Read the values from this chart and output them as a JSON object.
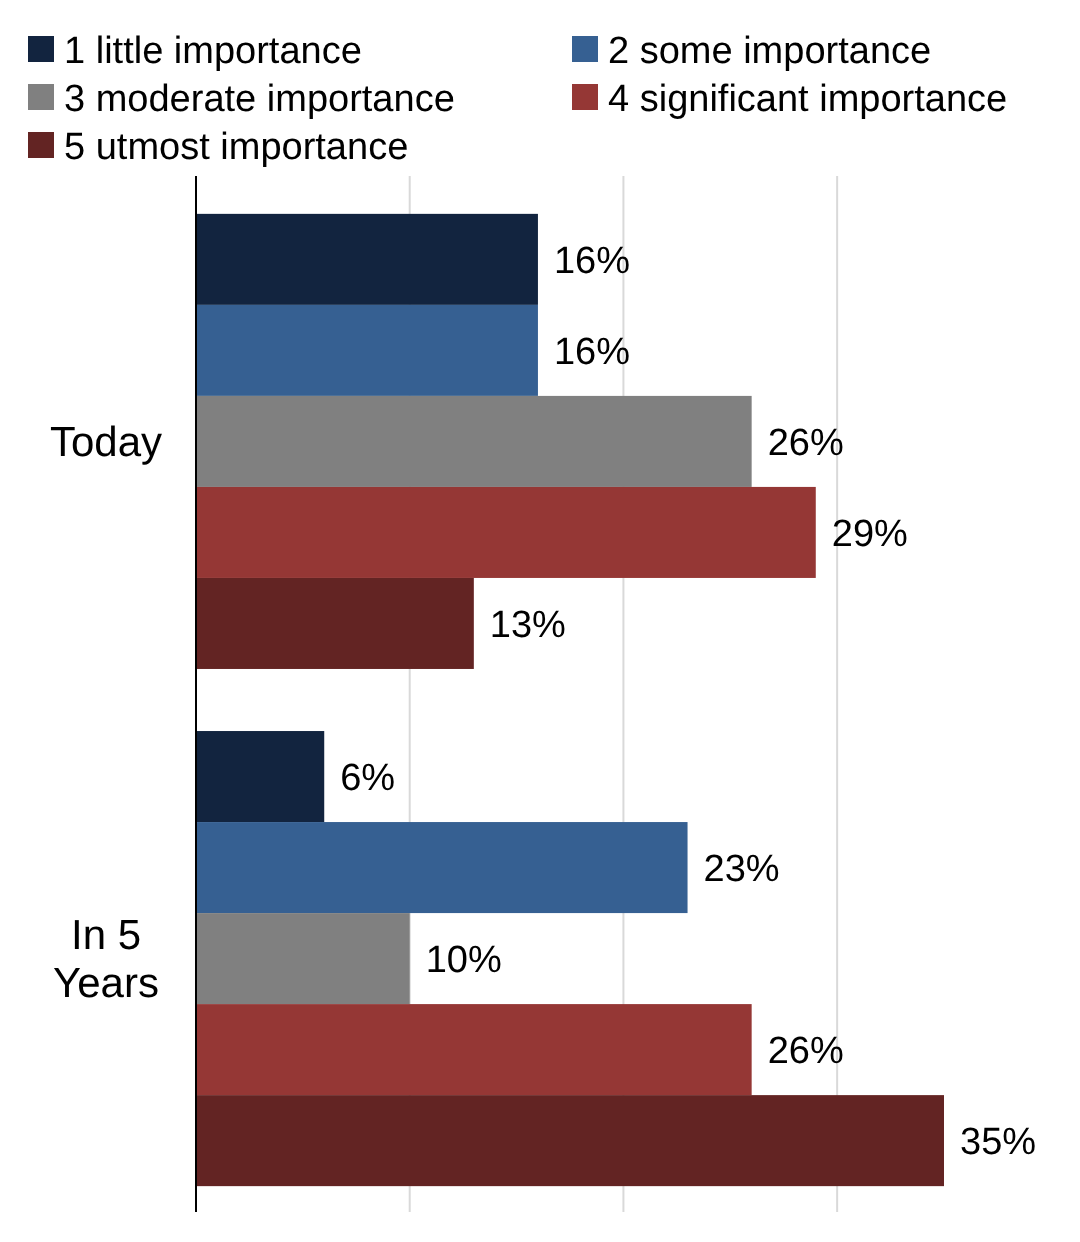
{
  "chart_data": {
    "type": "bar",
    "orientation": "horizontal",
    "categories": [
      "Today",
      "In 5 Years"
    ],
    "series": [
      {
        "name": "1 little importance",
        "color": "#12243f",
        "values": [
          16,
          6
        ],
        "value_labels": [
          "16%",
          "6%"
        ]
      },
      {
        "name": "2 some importance",
        "color": "#366092",
        "values": [
          16,
          23
        ],
        "value_labels": [
          "16%",
          "23%"
        ]
      },
      {
        "name": "3 moderate importance",
        "color": "#808080",
        "values": [
          26,
          10
        ],
        "value_labels": [
          "26%",
          "10%"
        ]
      },
      {
        "name": "4 significant importance",
        "color": "#953735",
        "values": [
          29,
          26
        ],
        "value_labels": [
          "29%",
          "26%"
        ]
      },
      {
        "name": "5 utmost importance",
        "color": "#632423",
        "values": [
          13,
          35
        ],
        "value_labels": [
          "13%",
          "35%"
        ]
      }
    ],
    "xticks": [
      {
        "value": 0,
        "label": null
      },
      {
        "value": 10,
        "label": null
      },
      {
        "value": 20,
        "label": null
      },
      {
        "value": 30,
        "label": null
      }
    ],
    "grid": "x",
    "legend": "top",
    "tick_labels": "y"
  }
}
